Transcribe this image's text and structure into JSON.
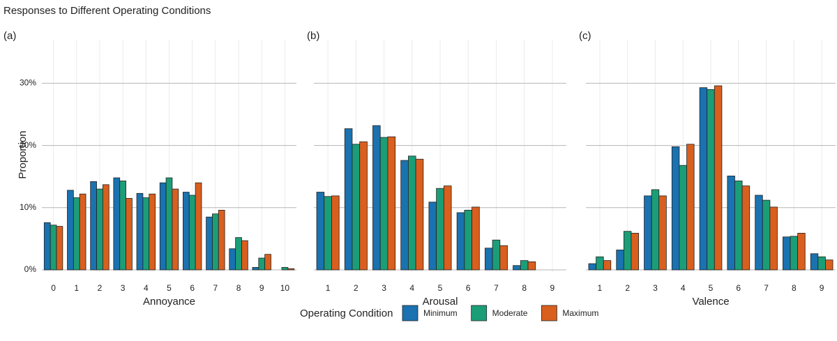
{
  "title": "Responses to Different Operating Conditions",
  "legend_title": "Operating Condition",
  "chart_data": [
    {
      "type": "bar",
      "label": "(a)",
      "x_label": "Annoyance",
      "y_label": "Proportion",
      "categories": [
        "0",
        "1",
        "2",
        "3",
        "4",
        "5",
        "6",
        "7",
        "8",
        "9",
        "10"
      ],
      "series": [
        {
          "name": "Minimum",
          "color": "#1a72b0",
          "values": [
            7.6,
            12.8,
            14.2,
            14.8,
            12.3,
            14.0,
            12.5,
            8.5,
            3.4,
            0.4,
            0
          ]
        },
        {
          "name": "Moderate",
          "color": "#1b9e77",
          "values": [
            7.2,
            11.6,
            13.0,
            14.3,
            11.6,
            14.8,
            12.0,
            9.0,
            5.2,
            1.9,
            0.4
          ]
        },
        {
          "name": "Maximum",
          "color": "#d95f1e",
          "values": [
            7.0,
            12.2,
            13.7,
            11.5,
            12.2,
            13.0,
            14.0,
            9.6,
            4.7,
            2.5,
            0.2
          ]
        }
      ],
      "ylim": [
        0,
        37
      ],
      "yticks": [
        {
          "value": 0,
          "label": "0%"
        },
        {
          "value": 10,
          "label": "10%"
        },
        {
          "value": 20,
          "label": "20%"
        },
        {
          "value": 30,
          "label": "30%"
        }
      ],
      "grid": true
    },
    {
      "type": "bar",
      "label": "(b)",
      "x_label": "Arousal",
      "categories": [
        "1",
        "2",
        "3",
        "4",
        "5",
        "6",
        "7",
        "8",
        "9"
      ],
      "series": [
        {
          "color": "#1a72b0",
          "values": [
            12.5,
            22.7,
            23.2,
            17.6,
            10.9,
            9.2,
            3.5,
            0.7,
            0
          ]
        },
        {
          "color": "#1b9e77",
          "values": [
            11.8,
            20.2,
            21.3,
            18.3,
            13.1,
            9.6,
            4.8,
            1.5,
            0
          ]
        },
        {
          "color": "#d95f1e",
          "values": [
            11.9,
            20.6,
            21.4,
            17.8,
            13.5,
            10.1,
            3.9,
            1.3,
            0
          ]
        }
      ],
      "ylim": [
        0,
        37
      ],
      "yticks": [
        0,
        10,
        20,
        30
      ],
      "grid": true
    },
    {
      "type": "bar",
      "label": "(c)",
      "x_label": "Valence",
      "categories": [
        "1",
        "2",
        "3",
        "4",
        "5",
        "6",
        "7",
        "8",
        "9"
      ],
      "series": [
        {
          "color": "#1a72b0",
          "values": [
            1.0,
            3.2,
            11.9,
            19.8,
            29.3,
            15.1,
            12.0,
            5.3,
            2.6
          ]
        },
        {
          "color": "#1b9e77",
          "values": [
            2.1,
            6.2,
            12.9,
            16.8,
            29.0,
            14.3,
            11.2,
            5.4,
            2.1
          ]
        },
        {
          "color": "#d95f1e",
          "values": [
            1.5,
            5.9,
            11.9,
            20.2,
            29.6,
            13.5,
            10.1,
            5.9,
            1.6
          ]
        }
      ],
      "ylim": [
        0,
        37
      ],
      "yticks": [
        0,
        10,
        20,
        30
      ],
      "grid": true
    }
  ]
}
